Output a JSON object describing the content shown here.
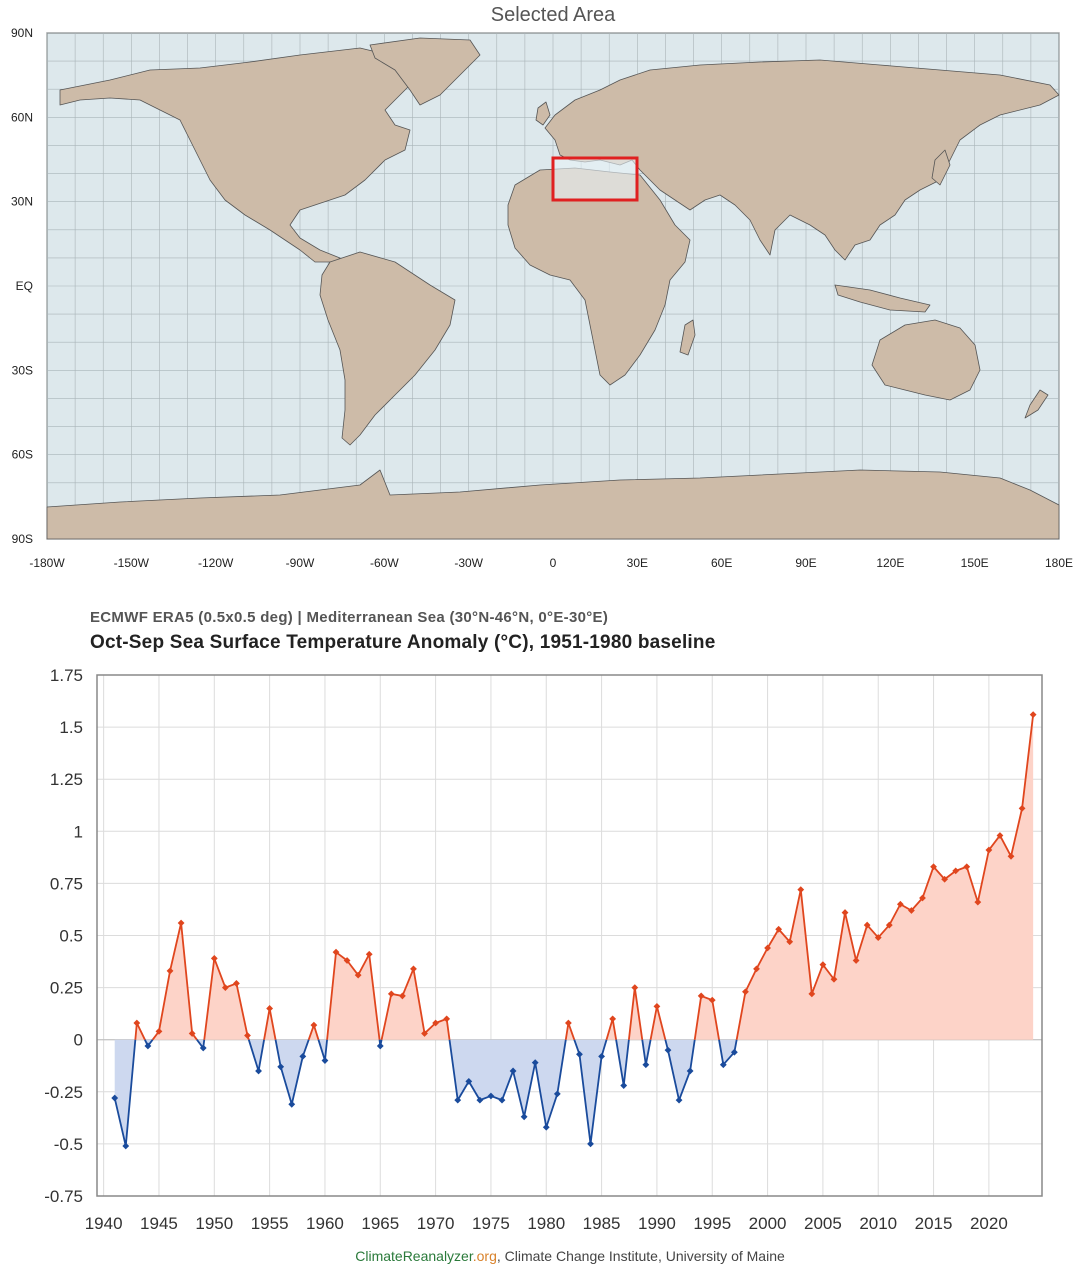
{
  "map": {
    "title": "Selected Area",
    "lat_labels": [
      "90N",
      "60N",
      "30N",
      "EQ",
      "30S",
      "60S",
      "90S"
    ],
    "lon_labels": [
      "-180W",
      "-150W",
      "-120W",
      "-90W",
      "-60W",
      "-30W",
      "0",
      "30E",
      "60E",
      "90E",
      "120E",
      "150E",
      "180E"
    ],
    "selection": {
      "lat_min": 30,
      "lat_max": 46,
      "lon_min": 0,
      "lon_max": 30
    },
    "colors": {
      "ocean": "#dde8ec",
      "land": "#cdbba8",
      "border": "#555555",
      "grid": "#a9b4b8",
      "selection": "#e02020"
    }
  },
  "chart_data": {
    "type": "line",
    "subtitle": "ECMWF ERA5 (0.5x0.5 deg) | Mediterranean Sea (30°N-46°N, 0°E-30°E)",
    "title": "Oct-Sep Sea Surface Temperature Anomaly (°C), 1951-1980 baseline",
    "xlim": [
      1940,
      2025
    ],
    "ylim": [
      -0.75,
      1.75
    ],
    "x_ticks": [
      1940,
      1945,
      1950,
      1955,
      1960,
      1965,
      1970,
      1975,
      1980,
      1985,
      1990,
      1995,
      2000,
      2005,
      2010,
      2015,
      2020
    ],
    "y_ticks": [
      "1.75",
      "1.5",
      "1.25",
      "1",
      "0.75",
      "0.5",
      "0.25",
      "0",
      "-0.25",
      "-0.5",
      "-0.75"
    ],
    "y_tick_values": [
      1.75,
      1.5,
      1.25,
      1,
      0.75,
      0.5,
      0.25,
      0,
      -0.25,
      -0.5,
      -0.75
    ],
    "grid": true,
    "x": [
      1941,
      1942,
      1943,
      1944,
      1945,
      1946,
      1947,
      1948,
      1949,
      1950,
      1951,
      1952,
      1953,
      1954,
      1955,
      1956,
      1957,
      1958,
      1959,
      1960,
      1961,
      1962,
      1963,
      1964,
      1965,
      1966,
      1967,
      1968,
      1969,
      1970,
      1971,
      1972,
      1973,
      1974,
      1975,
      1976,
      1977,
      1978,
      1979,
      1980,
      1981,
      1982,
      1983,
      1984,
      1985,
      1986,
      1987,
      1988,
      1989,
      1990,
      1991,
      1992,
      1993,
      1994,
      1995,
      1996,
      1997,
      1998,
      1999,
      2000,
      2001,
      2002,
      2003,
      2004,
      2005,
      2006,
      2007,
      2008,
      2009,
      2010,
      2011,
      2012,
      2013,
      2014,
      2015,
      2016,
      2017,
      2018,
      2019,
      2020,
      2021,
      2022,
      2023,
      2024
    ],
    "values": [
      -0.28,
      -0.51,
      0.08,
      -0.03,
      0.04,
      0.33,
      0.56,
      0.03,
      -0.04,
      0.39,
      0.25,
      0.27,
      0.02,
      -0.15,
      0.15,
      -0.13,
      -0.31,
      -0.08,
      0.07,
      -0.1,
      0.42,
      0.38,
      0.31,
      0.41,
      -0.03,
      0.22,
      0.21,
      0.34,
      0.03,
      0.08,
      0.1,
      -0.29,
      -0.2,
      -0.29,
      -0.27,
      -0.29,
      -0.15,
      -0.37,
      -0.11,
      -0.42,
      -0.26,
      0.08,
      -0.07,
      -0.5,
      -0.08,
      0.1,
      -0.22,
      0.25,
      -0.12,
      0.16,
      -0.05,
      -0.29,
      -0.15,
      0.21,
      0.19,
      -0.12,
      -0.06,
      0.23,
      0.34,
      0.44,
      0.53,
      0.47,
      0.72,
      0.22,
      0.36,
      0.29,
      0.61,
      0.38,
      0.55,
      0.49,
      0.55,
      0.65,
      0.62,
      0.68,
      0.83,
      0.77,
      0.81,
      0.83,
      0.66,
      0.91,
      0.98,
      0.88,
      1.11,
      1.56
    ],
    "colors": {
      "positive_line": "#e0461e",
      "positive_fill": "#fdd3c8",
      "negative_line": "#1a4b9c",
      "negative_fill": "#cdd8ef",
      "grid": "#dcdcdc"
    }
  },
  "footer": {
    "brand": "ClimateReanalyzer",
    "tld": ".org",
    "rest": ", Climate Change Institute, University of Maine"
  }
}
